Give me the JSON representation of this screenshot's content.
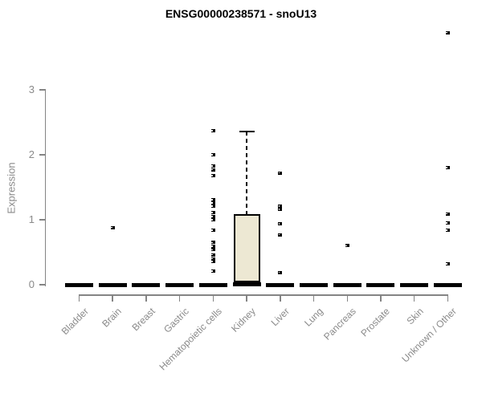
{
  "header": {
    "title": "ENSG00000238571 - snoU13"
  },
  "chart_data": {
    "type": "boxplot",
    "title": "ENSG00000238571 - snoU13",
    "ylabel": "Expression",
    "xlabel": "",
    "ylim": [
      0,
      3
    ],
    "yticks": [
      0,
      1,
      2,
      3
    ],
    "grid": false,
    "legend": "none",
    "categories": [
      "Bladder",
      "Brain",
      "Breast",
      "Gastric",
      "Hematopoietic cells",
      "Kidney",
      "Liver",
      "Lung",
      "Pancreas",
      "Prostate",
      "Skin",
      "Unknown / Other"
    ],
    "series": [
      {
        "category": "Bladder",
        "median": 0,
        "q1": 0,
        "q3": 0,
        "whisker_low": 0,
        "whisker_high": 0,
        "outliers": []
      },
      {
        "category": "Brain",
        "median": 0,
        "q1": 0,
        "q3": 0,
        "whisker_low": 0,
        "whisker_high": 0,
        "outliers": [
          0.88
        ]
      },
      {
        "category": "Breast",
        "median": 0,
        "q1": 0,
        "q3": 0,
        "whisker_low": 0,
        "whisker_high": 0,
        "outliers": []
      },
      {
        "category": "Gastric",
        "median": 0,
        "q1": 0,
        "q3": 0,
        "whisker_low": 0,
        "whisker_high": 0,
        "outliers": []
      },
      {
        "category": "Hematopoietic cells",
        "median": 0,
        "q1": 0,
        "q3": 0,
        "whisker_low": 0,
        "whisker_high": 0,
        "outliers": [
          2.37,
          2.0,
          1.83,
          1.77,
          1.68,
          1.31,
          1.26,
          1.21,
          1.11,
          1.05,
          1.0,
          0.84,
          0.65,
          0.59,
          0.54,
          0.46,
          0.4,
          0.36,
          0.21
        ]
      },
      {
        "category": "Kidney",
        "median": 0.01,
        "q1": 0.04,
        "q3": 1.09,
        "whisker_low": 0,
        "whisker_high": 2.36,
        "outliers": []
      },
      {
        "category": "Liver",
        "median": 0,
        "q1": 0,
        "q3": 0,
        "whisker_low": 0,
        "whisker_high": 0,
        "outliers": [
          1.72,
          1.21,
          1.16,
          0.94,
          0.77,
          0.19
        ]
      },
      {
        "category": "Lung",
        "median": 0,
        "q1": 0,
        "q3": 0,
        "whisker_low": 0,
        "whisker_high": 0,
        "outliers": []
      },
      {
        "category": "Pancreas",
        "median": 0,
        "q1": 0,
        "q3": 0,
        "whisker_low": 0,
        "whisker_high": 0,
        "outliers": [
          0.6
        ]
      },
      {
        "category": "Prostate",
        "median": 0,
        "q1": 0,
        "q3": 0,
        "whisker_low": 0,
        "whisker_high": 0,
        "outliers": []
      },
      {
        "category": "Skin",
        "median": 0,
        "q1": 0,
        "q3": 0,
        "whisker_low": 0,
        "whisker_high": 0,
        "outliers": []
      },
      {
        "category": "Unknown / Other",
        "median": 0,
        "q1": 0,
        "q3": 0,
        "whisker_low": 0,
        "whisker_high": 0,
        "outliers": [
          3.88,
          1.8,
          1.09,
          0.95,
          0.84,
          0.32
        ]
      }
    ],
    "colors": {
      "box_fill": "#EDE8D3",
      "box_border": "#000000",
      "marker": "#000000",
      "axis": "#848484",
      "tick_label": "#8a8a8a",
      "title": "#000000"
    }
  }
}
